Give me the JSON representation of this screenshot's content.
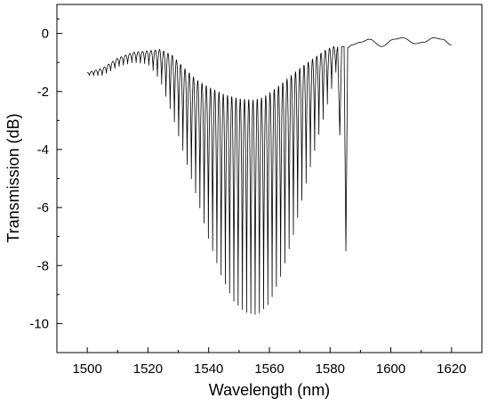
{
  "chart_data": {
    "type": "line",
    "xlabel": "Wavelength (nm)",
    "ylabel": "Transmission (dB)",
    "xlim": [
      1490,
      1630
    ],
    "ylim": [
      -11,
      1
    ],
    "xticks": [
      1500,
      1520,
      1540,
      1560,
      1580,
      1600,
      1620
    ],
    "yticks": [
      0,
      -2,
      -4,
      -6,
      -8,
      -10
    ],
    "x_tick_labels": [
      "1500",
      "1520",
      "1540",
      "1560",
      "1580",
      "1600",
      "1620"
    ],
    "y_tick_labels": [
      "0",
      "-2",
      "-4",
      "-6",
      "-8",
      "-10"
    ],
    "grid": false,
    "series": [
      {
        "color": "#000000",
        "fringe_period_nm": 1.4,
        "upper_envelope": [
          [
            1500,
            -1.35
          ],
          [
            1505,
            -1.2
          ],
          [
            1510,
            -0.85
          ],
          [
            1515,
            -0.65
          ],
          [
            1520,
            -0.6
          ],
          [
            1524,
            -0.55
          ],
          [
            1528,
            -0.75
          ],
          [
            1532,
            -1.2
          ],
          [
            1536,
            -1.6
          ],
          [
            1540,
            -1.85
          ],
          [
            1545,
            -2.1
          ],
          [
            1550,
            -2.25
          ],
          [
            1555,
            -2.3
          ],
          [
            1558,
            -2.2
          ],
          [
            1562,
            -1.9
          ],
          [
            1566,
            -1.55
          ],
          [
            1570,
            -1.2
          ],
          [
            1574,
            -0.9
          ],
          [
            1578,
            -0.6
          ],
          [
            1581,
            -0.45
          ],
          [
            1582.5,
            -0.45
          ]
        ],
        "lower_envelope": [
          [
            1500,
            -1.45
          ],
          [
            1505,
            -1.45
          ],
          [
            1510,
            -1.15
          ],
          [
            1515,
            -1.0
          ],
          [
            1520,
            -1.05
          ],
          [
            1524,
            -1.6
          ],
          [
            1528,
            -2.8
          ],
          [
            1532,
            -4.2
          ],
          [
            1536,
            -5.6
          ],
          [
            1540,
            -7.1
          ],
          [
            1544,
            -8.3
          ],
          [
            1548,
            -9.2
          ],
          [
            1552,
            -9.6
          ],
          [
            1556,
            -9.7
          ],
          [
            1560,
            -9.3
          ],
          [
            1564,
            -8.3
          ],
          [
            1568,
            -6.9
          ],
          [
            1572,
            -5.2
          ],
          [
            1576,
            -3.6
          ],
          [
            1580,
            -2.1
          ],
          [
            1582.5,
            -1.1
          ]
        ],
        "notch_points": [
          [
            1582.5,
            -0.45
          ],
          [
            1583.2,
            -3.5
          ],
          [
            1583.8,
            -0.45
          ],
          [
            1584.6,
            -0.45
          ],
          [
            1585.2,
            -7.5
          ],
          [
            1585.8,
            -0.5
          ],
          [
            1587,
            -0.4
          ]
        ],
        "tail_points": [
          [
            1587,
            -0.4
          ],
          [
            1590,
            -0.3
          ],
          [
            1593,
            -0.2
          ],
          [
            1597,
            -0.45
          ],
          [
            1601,
            -0.2
          ],
          [
            1604,
            -0.15
          ],
          [
            1608,
            -0.35
          ],
          [
            1611,
            -0.3
          ],
          [
            1614,
            -0.15
          ],
          [
            1617,
            -0.2
          ],
          [
            1620,
            -0.4
          ]
        ]
      }
    ]
  }
}
